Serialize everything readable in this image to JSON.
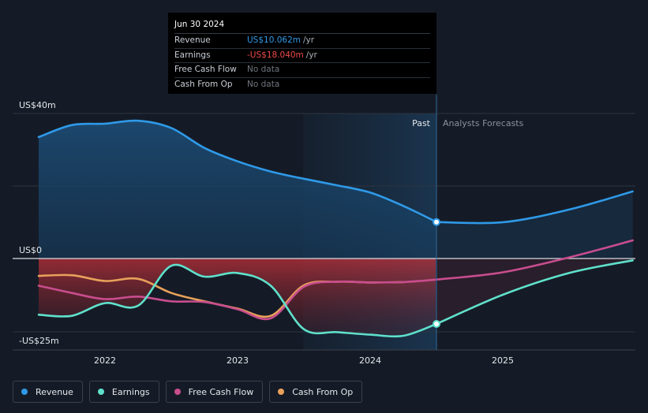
{
  "tooltip": {
    "date": "Jun 30 2024",
    "rows": [
      {
        "label": "Revenue",
        "value": "US$10.062m",
        "unit": "/yr",
        "color": "#2f9ae8"
      },
      {
        "label": "Earnings",
        "value": "-US$18.040m",
        "unit": "/yr",
        "color": "#f04a4a"
      },
      {
        "label": "Free Cash Flow",
        "value": "No data",
        "unit": "",
        "color": "#6f767f"
      },
      {
        "label": "Cash From Op",
        "value": "No data",
        "unit": "",
        "color": "#6f767f"
      }
    ]
  },
  "legend": [
    {
      "label": "Revenue",
      "color": "#2f9ae8"
    },
    {
      "label": "Earnings",
      "color": "#5fe0cb"
    },
    {
      "label": "Free Cash Flow",
      "color": "#c84d8e"
    },
    {
      "label": "Cash From Op",
      "color": "#e8a15a"
    }
  ],
  "chart_data": {
    "type": "line",
    "ylabels": [
      "US$40m",
      "US$0",
      "-US$25m"
    ],
    "ylim": [
      -25,
      40
    ],
    "xlim": [
      2021.5,
      2025.98
    ],
    "xticks": [
      {
        "x": 2022,
        "label": "2022"
      },
      {
        "x": 2023,
        "label": "2023"
      },
      {
        "x": 2024,
        "label": "2024"
      },
      {
        "x": 2025,
        "label": "2025"
      }
    ],
    "divider_x": 2024.5,
    "past_label": "Past",
    "forecast_label": "Analysts Forecasts",
    "grid": true,
    "series": [
      {
        "name": "Revenue",
        "color": "#2f9ae8",
        "points": [
          [
            2021.5,
            33.5
          ],
          [
            2021.75,
            36.8
          ],
          [
            2022.0,
            37.2
          ],
          [
            2022.25,
            38.0
          ],
          [
            2022.5,
            36.0
          ],
          [
            2022.75,
            30.5
          ],
          [
            2023.0,
            26.8
          ],
          [
            2023.25,
            24.0
          ],
          [
            2023.5,
            22.0
          ],
          [
            2023.75,
            20.2
          ],
          [
            2024.0,
            18.2
          ],
          [
            2024.25,
            14.5
          ],
          [
            2024.5,
            10.062
          ]
        ],
        "forecast": [
          [
            2024.5,
            10.062
          ],
          [
            2025.0,
            10.0
          ],
          [
            2025.5,
            13.5
          ],
          [
            2025.98,
            18.5
          ]
        ]
      },
      {
        "name": "Earnings",
        "color": "#5fe0cb",
        "points": [
          [
            2021.5,
            -15.5
          ],
          [
            2021.75,
            -15.8
          ],
          [
            2022.0,
            -12.3
          ],
          [
            2022.25,
            -13.0
          ],
          [
            2022.5,
            -2.0
          ],
          [
            2022.75,
            -5.0
          ],
          [
            2023.0,
            -4.0
          ],
          [
            2023.25,
            -7.5
          ],
          [
            2023.5,
            -19.5
          ],
          [
            2023.75,
            -20.3
          ],
          [
            2024.0,
            -21.0
          ],
          [
            2024.25,
            -21.3
          ],
          [
            2024.5,
            -18.04
          ]
        ],
        "forecast": [
          [
            2024.5,
            -18.04
          ],
          [
            2025.0,
            -10.0
          ],
          [
            2025.5,
            -4.0
          ],
          [
            2025.98,
            -0.5
          ]
        ]
      },
      {
        "name": "Free Cash Flow",
        "color": "#c84d8e",
        "points": [
          [
            2021.5,
            -7.5
          ],
          [
            2021.75,
            -9.5
          ],
          [
            2022.0,
            -11.2
          ],
          [
            2022.25,
            -10.5
          ],
          [
            2022.5,
            -11.8
          ],
          [
            2022.75,
            -12.0
          ],
          [
            2023.0,
            -14.0
          ],
          [
            2023.25,
            -16.5
          ],
          [
            2023.5,
            -7.8
          ],
          [
            2023.75,
            -6.4
          ],
          [
            2024.0,
            -6.6
          ],
          [
            2024.25,
            -6.5
          ]
        ],
        "forecast": [
          [
            2024.25,
            -6.5
          ],
          [
            2024.5,
            -5.8
          ],
          [
            2025.0,
            -3.8
          ],
          [
            2025.5,
            0.3
          ],
          [
            2025.98,
            5.0
          ]
        ]
      },
      {
        "name": "Cash From Op",
        "color": "#e8a15a",
        "points": [
          [
            2021.5,
            -4.8
          ],
          [
            2021.75,
            -4.6
          ],
          [
            2022.0,
            -6.2
          ],
          [
            2022.25,
            -5.6
          ],
          [
            2022.5,
            -9.5
          ],
          [
            2022.75,
            -11.8
          ],
          [
            2023.0,
            -13.8
          ],
          [
            2023.25,
            -15.8
          ],
          [
            2023.5,
            -7.4
          ],
          [
            2023.75,
            -6.4
          ],
          [
            2024.0,
            -6.6
          ],
          [
            2024.25,
            -6.5
          ]
        ]
      }
    ]
  }
}
